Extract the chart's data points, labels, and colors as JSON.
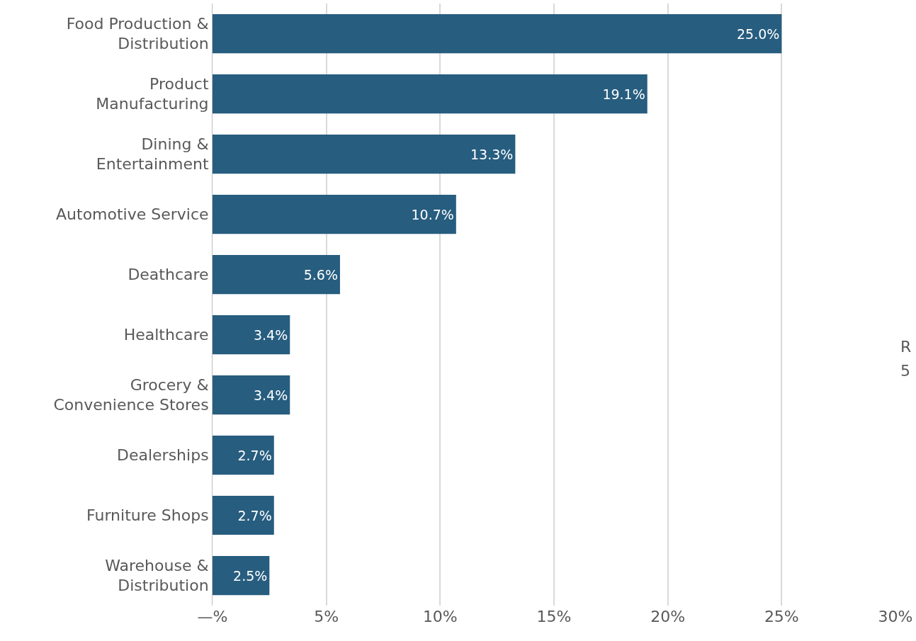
{
  "chart_data": {
    "type": "bar",
    "orientation": "horizontal",
    "categories": [
      "Food Production & Distribution",
      "Product Manufacturing",
      "Dining & Entertainment",
      "Automotive Service",
      "Deathcare",
      "Healthcare",
      "Grocery & Convenience Stores",
      "Dealerships",
      "Furniture Shops",
      "Warehouse & Distribution"
    ],
    "values": [
      25.0,
      19.1,
      13.3,
      10.7,
      5.6,
      3.4,
      3.4,
      2.7,
      2.7,
      2.5
    ],
    "value_labels": [
      "25.0%",
      "19.1%",
      "13.3%",
      "10.7%",
      "5.6%",
      "3.4%",
      "3.4%",
      "2.7%",
      "2.7%",
      "2.5%"
    ],
    "color": "#275d7f",
    "xlim": [
      0,
      30
    ],
    "xticks": [
      {
        "value": 0,
        "label": "—%"
      },
      {
        "value": 5,
        "label": "5%"
      },
      {
        "value": 10,
        "label": "10%"
      },
      {
        "value": 15,
        "label": "15%"
      },
      {
        "value": 20,
        "label": "20%"
      },
      {
        "value": 25,
        "label": "25%"
      },
      {
        "value": 30,
        "label": "30%"
      }
    ],
    "grid": "x",
    "annotations": [
      "R",
      "5"
    ]
  }
}
